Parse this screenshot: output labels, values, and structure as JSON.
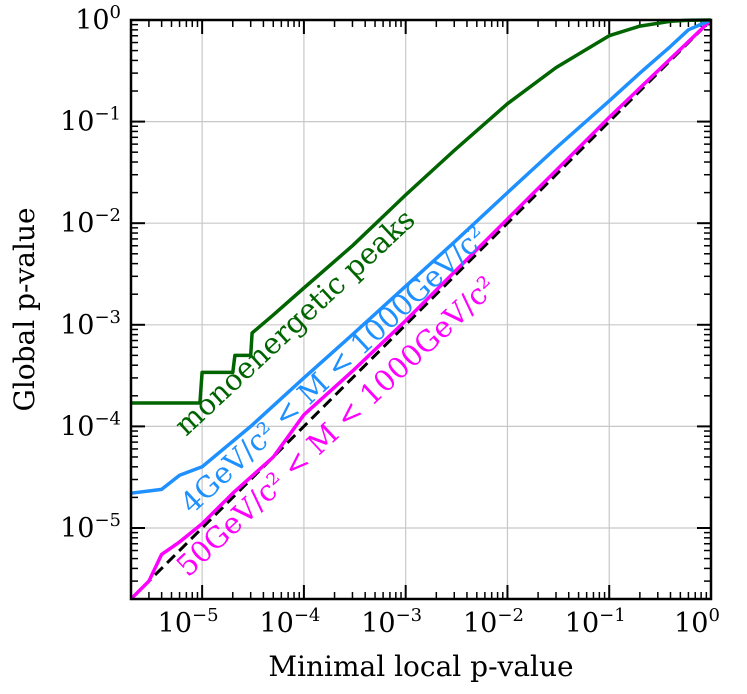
{
  "chart_data": {
    "type": "line",
    "xlabel": "Minimal local p-value",
    "ylabel": "Global p-value",
    "xscale": "log",
    "yscale": "log",
    "xlim": [
      2e-06,
      1
    ],
    "ylim": [
      2e-06,
      1
    ],
    "grid": true,
    "x_tick_labels": [
      "10",
      "10",
      "10",
      "10",
      "10",
      "10"
    ],
    "x_tick_exponents": [
      "−5",
      "−4",
      "−3",
      "−2",
      "−1",
      "0"
    ],
    "y_tick_labels": [
      "10",
      "10",
      "10",
      "10",
      "10",
      "10"
    ],
    "y_tick_exponents": [
      "−5",
      "−4",
      "−3",
      "−2",
      "−1",
      "0"
    ],
    "series": [
      {
        "name": "monoenergetic peaks",
        "color": "#006400",
        "x": [
          2e-06,
          9.5e-06,
          1e-05,
          2e-05,
          2.1e-05,
          3e-05,
          3.1e-05,
          5e-05,
          0.0001,
          0.0003,
          0.001,
          0.003,
          0.01,
          0.03,
          0.1,
          0.2,
          0.4,
          0.6,
          1
        ],
        "y": [
          0.00017,
          0.00017,
          0.00034,
          0.00034,
          0.0005,
          0.0005,
          0.00083,
          0.00125,
          0.0023,
          0.006,
          0.019,
          0.052,
          0.15,
          0.34,
          0.7,
          0.87,
          0.97,
          0.995,
          1
        ]
      },
      {
        "name": "4GeV/c² < M < 1000GeV/c²",
        "color": "#1e90ff",
        "x": [
          2e-06,
          4e-06,
          6e-06,
          1e-05,
          3e-05,
          0.0001,
          0.0003,
          0.001,
          0.003,
          0.01,
          0.03,
          0.1,
          0.2,
          0.4,
          0.6,
          1
        ],
        "y": [
          2.2e-05,
          2.4e-05,
          3.3e-05,
          4e-05,
          0.0001,
          0.0003,
          0.0008,
          0.0024,
          0.0065,
          0.02,
          0.055,
          0.16,
          0.3,
          0.55,
          0.8,
          1
        ]
      },
      {
        "name": "50GeV/c² < M < 1000GeV/c²",
        "color": "#ff00ff",
        "x": [
          2e-06,
          3e-06,
          4e-06,
          6e-06,
          1e-05,
          2e-05,
          5e-05,
          0.0001,
          0.0003,
          0.001,
          0.01,
          0.1,
          1
        ],
        "y": [
          2e-06,
          3e-06,
          5.5e-06,
          7.3e-06,
          1.1e-05,
          2.2e-05,
          5e-05,
          0.00013,
          0.00035,
          0.0011,
          0.011,
          0.11,
          1
        ]
      },
      {
        "name": "",
        "color": "#000000",
        "style": "dashed",
        "x": [
          2e-06,
          1
        ],
        "y": [
          2e-06,
          1
        ]
      }
    ],
    "annotations": [
      {
        "text": "monoenergetic peaks",
        "color": "#006400"
      },
      {
        "text": "4GeV/c² < M < 1000GeV/c²",
        "color": "#1e90ff"
      },
      {
        "text": "50GeV/c² < M < 1000GeV/c²",
        "color": "#ff00ff"
      }
    ]
  }
}
